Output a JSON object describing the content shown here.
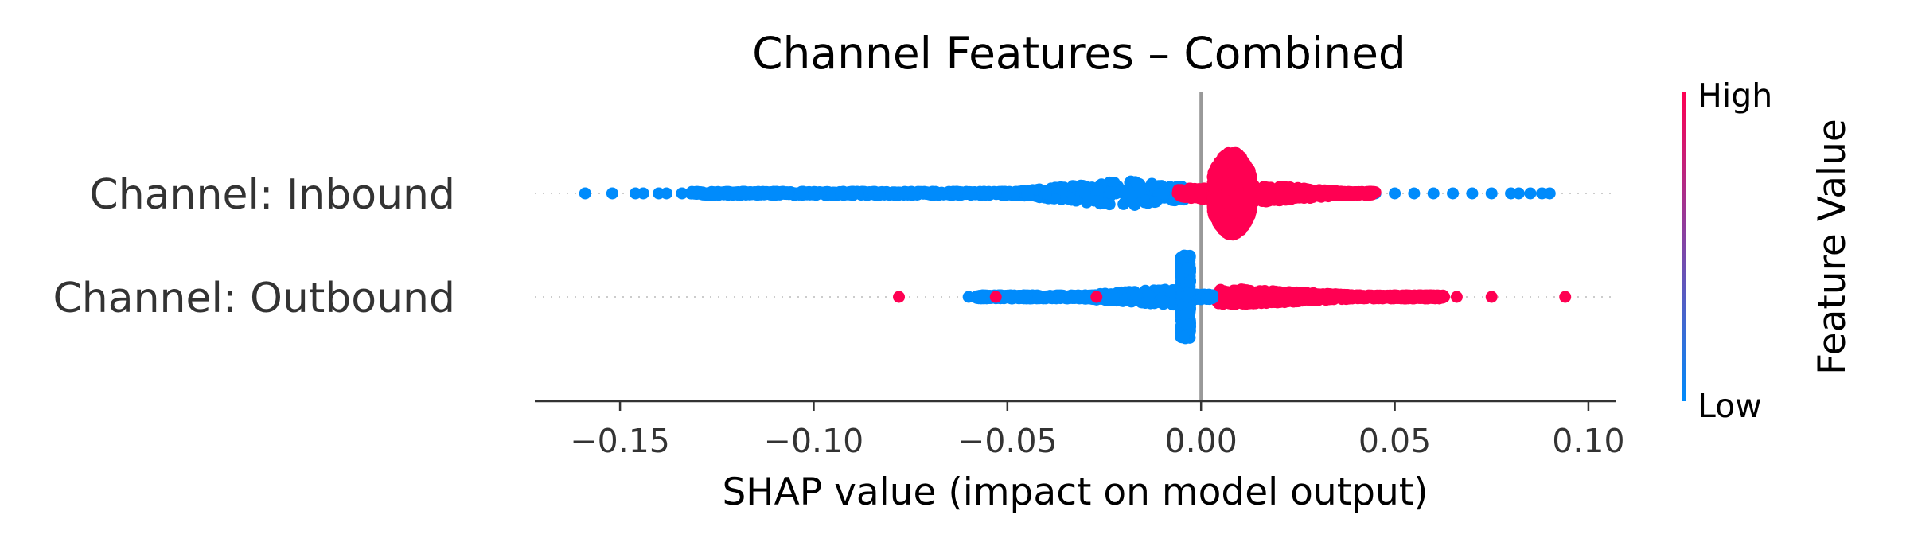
{
  "chart_data": {
    "type": "scatter",
    "title": "Channel Features – Combined",
    "xlabel": "SHAP value (impact on model output)",
    "ylabel": "",
    "xlim": [
      -0.172,
      0.107
    ],
    "xticks": [
      -0.15,
      -0.1,
      -0.05,
      0.0,
      0.05,
      0.1
    ],
    "xtick_labels": [
      "−0.15",
      "−0.10",
      "−0.05",
      "0.00",
      "0.05",
      "0.10"
    ],
    "zero_line": 0.0,
    "features": [
      {
        "name": "Channel: Inbound",
        "low_color_points": [
          -0.159,
          -0.152,
          -0.146,
          -0.144,
          -0.14,
          -0.138,
          -0.134,
          -0.131,
          -0.128,
          -0.12,
          -0.11,
          -0.1,
          -0.09,
          -0.08,
          -0.07,
          -0.06,
          -0.05,
          -0.04,
          -0.03,
          -0.02,
          -0.01,
          0.015,
          0.02,
          0.03,
          0.045,
          0.05,
          0.055,
          0.06,
          0.065,
          0.07,
          0.075,
          0.08,
          0.082,
          0.085,
          0.088,
          0.09
        ],
        "low_range": [
          -0.132,
          -0.003
        ],
        "low_cluster_center": -0.02,
        "high_cluster_range": [
          0.003,
          0.013
        ],
        "high_cluster_center": 0.008,
        "high_tail_range": [
          -0.006,
          0.045
        ],
        "high_outliers": [
          -0.006,
          0.04
        ]
      },
      {
        "name": "Channel: Outbound",
        "low_cluster_center": -0.004,
        "low_tail_range": [
          -0.058,
          -0.006
        ],
        "low_outliers": [
          -0.06,
          -0.056,
          -0.054
        ],
        "low_right_range": [
          -0.002,
          0.003
        ],
        "high_range": [
          0.004,
          0.063
        ],
        "high_outliers": [
          -0.078,
          -0.053,
          -0.027,
          0.066,
          0.075,
          0.094
        ]
      }
    ],
    "colorbar": {
      "label": "Feature Value",
      "high_label": "High",
      "low_label": "Low",
      "low_color": "#008bfb",
      "high_color": "#ff0052"
    }
  }
}
